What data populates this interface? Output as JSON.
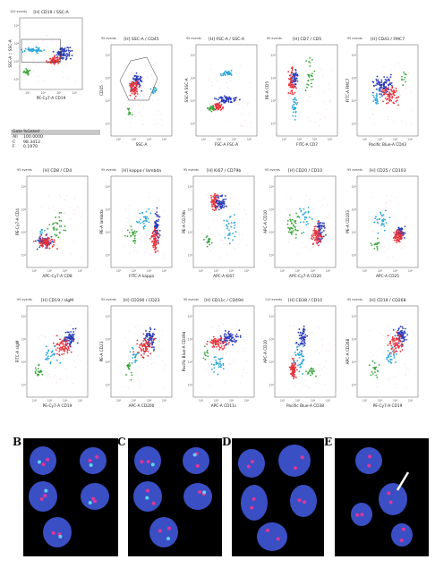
{
  "flow_panels": [
    {
      "title": "[H] CD19 / SSC-A",
      "events": "105 events",
      "xlabel": "PE-Cy7-A CD19",
      "ylabel": "SSC-A :: SSC-A"
    },
    {
      "title": "[H] SSC-A / CD45",
      "events": "95 events",
      "xlabel": "SSC-A",
      "ylabel": "CD45"
    },
    {
      "title": "[H] FSC-A / SSC-A",
      "events": "95 events",
      "xlabel": "FSC-A FSC-A",
      "ylabel": "SSC-A SSC-A"
    },
    {
      "title": "[H] CD7 / CD5",
      "events": "95 events",
      "xlabel": "FITC-A CD7",
      "ylabel": "PE-A CD5"
    },
    {
      "title": "[H] CD43 / FMC7",
      "events": "95 events",
      "xlabel": "Pacific Blue-A CD43",
      "ylabel": "FITC-A FMC7"
    },
    {
      "title": "[H] CD8 / CD4",
      "events": "95 events",
      "xlabel": "APC-Cy7-A CD8",
      "ylabel": "PE-Cy7-A CD4"
    },
    {
      "title": "[H] kappa / lambda",
      "events": "95 events",
      "xlabel": "FITC-A kappa",
      "ylabel": "PE-A lambda"
    },
    {
      "title": "[H] Ki67 / CD79b",
      "events": "95 events",
      "xlabel": "APC-A Ki67",
      "ylabel": "PE-A CD79b"
    },
    {
      "title": "[H] CD20 / CD10",
      "events": "95 events",
      "xlabel": "APC-Cy7-A CD20",
      "ylabel": "APC-A CD10"
    },
    {
      "title": "[H] CD25 / CD103",
      "events": "95 events",
      "xlabel": "APC-A CD25",
      "ylabel": "PE-A CD103"
    },
    {
      "title": "[H] CD19 / sIgM",
      "events": "95 events",
      "xlabel": "PE-Cy7-A CD19",
      "ylabel": "FITC-A sIgM"
    },
    {
      "title": "[H] CD200 / CD23",
      "events": "95 events",
      "xlabel": "APC-A CD200",
      "ylabel": "PE-A CD23"
    },
    {
      "title": "[H] CD11c / CD49d",
      "events": "95 events",
      "xlabel": "APC-A CD11c",
      "ylabel": "Pacific Blue-A CD49d"
    },
    {
      "title": "[H] CD38 / CD10",
      "events": "115 events",
      "xlabel": "Pacific Blue-A CD38",
      "ylabel": "APC-A CD10"
    },
    {
      "title": "[H] CD19 / CD268",
      "events": "95 events",
      "xlabel": "PE-Cy7-A CD19",
      "ylabel": "APC-A CD268"
    }
  ],
  "gates": {
    "header": {
      "gate": "Gate",
      "pct": "%Gated"
    },
    "rows": [
      {
        "gate": "All",
        "pct": "100.0000"
      },
      {
        "gate": "C",
        "pct": "98.3412"
      },
      {
        "gate": "F",
        "pct": "0.1970"
      }
    ]
  },
  "fish_panels": [
    {
      "label": "B",
      "red_dots": 2,
      "cyan_dots": 1
    },
    {
      "label": "C",
      "red_dots": 2,
      "cyan_dots": 1
    },
    {
      "label": "D",
      "red_dots": 2,
      "cyan_dots": 0
    },
    {
      "label": "E",
      "red_dots": 2,
      "cyan_dots": 0
    }
  ],
  "chart_data": [
    {
      "type": "scatter",
      "title": "[H] CD19 / SSC-A",
      "xlabel": "PE-Cy7-A CD19",
      "ylabel": "SSC-A :: SSC-A",
      "series": [
        {
          "name": "",
          "color": "#2b3bb8"
        },
        {
          "name": "",
          "color": "#e8343c"
        },
        {
          "name": "",
          "color": "#2aa7d8"
        },
        {
          "name": "",
          "color": "#3aa63a"
        }
      ]
    },
    {
      "type": "scatter",
      "title": "[H] SSC-A / CD45"
    },
    {
      "type": "scatter",
      "title": "[H] FSC-A / SSC-A"
    },
    {
      "type": "scatter",
      "title": "[H] CD7 / CD5"
    },
    {
      "type": "scatter",
      "title": "[H] CD43 / FMC7"
    },
    {
      "type": "scatter",
      "title": "[H] CD8 / CD4"
    },
    {
      "type": "scatter",
      "title": "[H] kappa / lambda"
    },
    {
      "type": "scatter",
      "title": "[H] Ki67 / CD79b"
    },
    {
      "type": "scatter",
      "title": "[H] CD20 / CD10"
    },
    {
      "type": "scatter",
      "title": "[H] CD25 / CD103"
    },
    {
      "type": "scatter",
      "title": "[H] CD19 / sIgM"
    },
    {
      "type": "scatter",
      "title": "[H] CD200 / CD23"
    },
    {
      "type": "scatter",
      "title": "[H] CD11c / CD49d"
    },
    {
      "type": "scatter",
      "title": "[H] CD38 / CD10"
    },
    {
      "type": "scatter",
      "title": "[H] CD19 / CD268"
    }
  ],
  "colors": {
    "blue": "#2b3bb8",
    "red": "#e8343c",
    "cyan": "#2aa7d8",
    "green": "#3aa63a",
    "fish_nucleus": "#3a4fc4",
    "fish_red": "#e0359a",
    "fish_cyan": "#5fd3f0"
  }
}
